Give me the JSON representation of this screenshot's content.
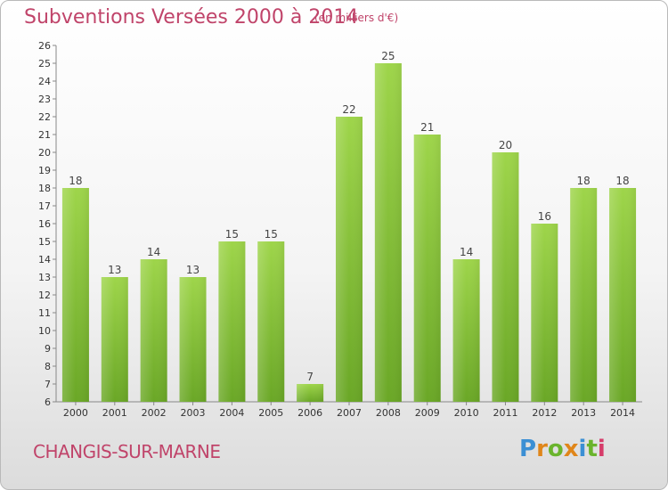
{
  "header": {
    "title": "Subventions Versées 2000 à 2014",
    "subtitle": "(en milliers d'€)"
  },
  "footer": {
    "place": "CHANGIS-SUR-MARNE",
    "logo": {
      "letters": [
        "P",
        "r",
        "o",
        "x",
        "i",
        "t",
        "i"
      ]
    }
  },
  "chart_data": {
    "type": "bar",
    "title": "Subventions Versées 2000 à 2014",
    "subtitle": "(en milliers d'€)",
    "categories": [
      "2000",
      "2001",
      "2002",
      "2003",
      "2004",
      "2005",
      "2006",
      "2007",
      "2008",
      "2009",
      "2010",
      "2011",
      "2012",
      "2013",
      "2014"
    ],
    "values": [
      18,
      13,
      14,
      13,
      15,
      15,
      7,
      22,
      25,
      21,
      14,
      20,
      16,
      18,
      18
    ],
    "ylim": [
      6,
      26
    ],
    "yticks": [
      6,
      7,
      8,
      9,
      10,
      11,
      12,
      13,
      14,
      15,
      16,
      17,
      18,
      19,
      20,
      21,
      22,
      23,
      24,
      25,
      26
    ],
    "grid": false,
    "bar_color": "#8ccc3c",
    "xlabel": "",
    "ylabel": ""
  }
}
